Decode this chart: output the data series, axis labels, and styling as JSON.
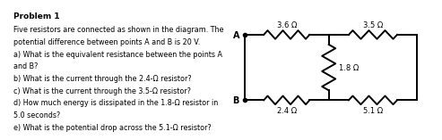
{
  "title": "Problem 1",
  "text_lines": [
    "Five resistors are connected as shown in the diagram. The",
    "potential difference between points A and B is 20 V.",
    "a) What is the equivalent resistance between the points A",
    "and B?",
    "b) What is the current through the 2.4-Ω resistor?",
    "c) What is the current through the 3.5-Ω resistor?",
    "d) How much energy is dissipated in the 1.8-Ω resistor in",
    "5.0 seconds?",
    "e) What is the potential drop across the 5.1-Ω resistor?"
  ],
  "bg_color": "#c8c8c8",
  "text_color": "#000000",
  "resistors": {
    "R_top_left": "3.6 Ω",
    "R_top_right": "3.5 Ω",
    "R_middle": "1.8 Ω",
    "R_bot_left": "2.4 Ω",
    "R_bot_right": "5.1 Ω"
  },
  "text_fontsize": 5.8,
  "title_fontsize": 6.5,
  "label_fontsize": 6.0,
  "AB_fontsize": 7.0
}
